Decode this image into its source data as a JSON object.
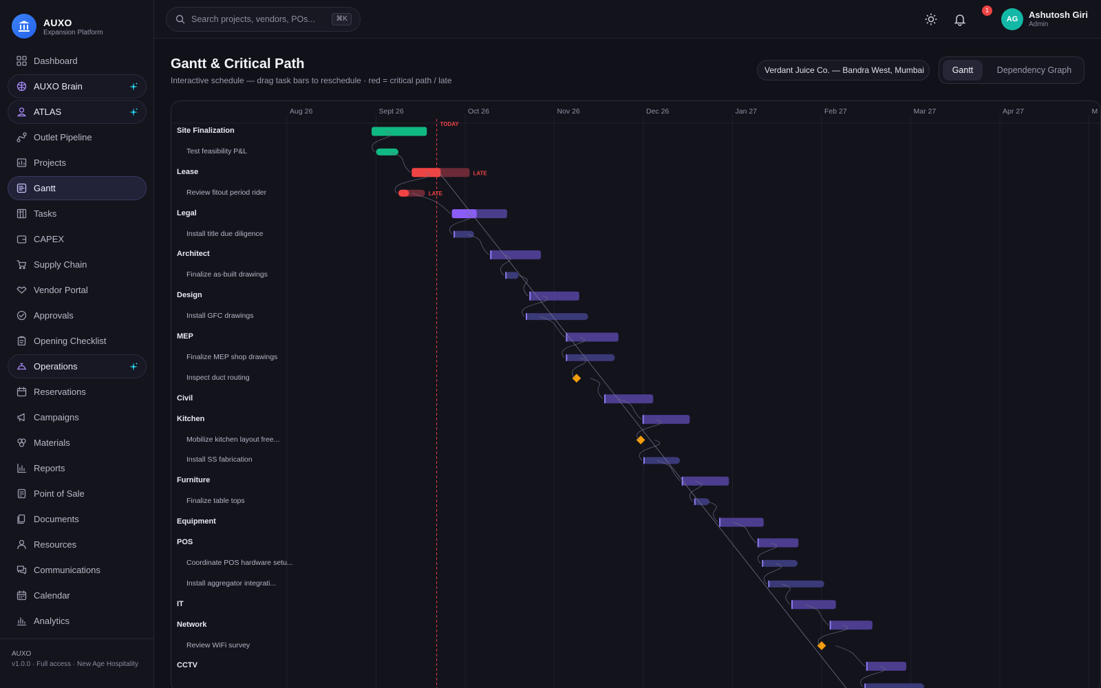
{
  "brand": {
    "name": "AUXO",
    "subtitle": "Expansion Platform"
  },
  "nav": [
    {
      "id": "dashboard",
      "label": "Dashboard",
      "icon": "grid-icon"
    },
    {
      "id": "auxo-brain",
      "label": "AUXO Brain",
      "icon": "brain-icon",
      "style": "boxed",
      "spark": true
    },
    {
      "id": "atlas",
      "label": "ATLAS",
      "icon": "user-circle-icon",
      "style": "boxed",
      "spark": true
    },
    {
      "id": "outlet-pipeline",
      "label": "Outlet Pipeline",
      "icon": "pipeline-icon"
    },
    {
      "id": "projects",
      "label": "Projects",
      "icon": "folder-icon"
    },
    {
      "id": "gantt",
      "label": "Gantt",
      "icon": "gantt-icon",
      "style": "active"
    },
    {
      "id": "tasks",
      "label": "Tasks",
      "icon": "board-icon"
    },
    {
      "id": "capex",
      "label": "CAPEX",
      "icon": "wallet-icon"
    },
    {
      "id": "supply-chain",
      "label": "Supply Chain",
      "icon": "cart-icon"
    },
    {
      "id": "vendor-portal",
      "label": "Vendor Portal",
      "icon": "handshake-icon"
    },
    {
      "id": "approvals",
      "label": "Approvals",
      "icon": "check-circle-icon"
    },
    {
      "id": "opening-checklist",
      "label": "Opening Checklist",
      "icon": "clipboard-icon"
    },
    {
      "id": "operations",
      "label": "Operations",
      "icon": "bell-service-icon",
      "style": "boxed",
      "spark": true
    },
    {
      "id": "reservations",
      "label": "Reservations",
      "icon": "calendar-icon"
    },
    {
      "id": "campaigns",
      "label": "Campaigns",
      "icon": "megaphone-icon"
    },
    {
      "id": "materials",
      "label": "Materials",
      "icon": "cubes-icon"
    },
    {
      "id": "reports",
      "label": "Reports",
      "icon": "bar-chart-icon"
    },
    {
      "id": "point-of-sale",
      "label": "Point of Sale",
      "icon": "terminal-icon"
    },
    {
      "id": "documents",
      "label": "Documents",
      "icon": "files-icon"
    },
    {
      "id": "resources",
      "label": "Resources",
      "icon": "person-icon"
    },
    {
      "id": "communications",
      "label": "Communications",
      "icon": "chat-icon"
    },
    {
      "id": "calendar",
      "label": "Calendar",
      "icon": "calendar-grid-icon"
    },
    {
      "id": "analytics",
      "label": "Analytics",
      "icon": "analytics-icon"
    }
  ],
  "footer": {
    "name": "AUXO",
    "line": "v1.0.0 · Full access · New Age Hospitality"
  },
  "topbar": {
    "search_placeholder": "Search projects, vendors, POs...",
    "shortcut": "⌘K",
    "notifications": "1",
    "user": {
      "initials": "AG",
      "name": "Ashutosh Giri",
      "role": "Admin"
    }
  },
  "page": {
    "title": "Gantt & Critical Path",
    "subtitle": "Interactive schedule — drag task bars to reschedule · red = critical path / late",
    "project": "Verdant Juice Co. — Bandra West, Mumbai",
    "view_tabs": [
      "Gantt",
      "Dependency Graph"
    ],
    "active_view": "Gantt"
  },
  "colors": {
    "done": "#10b981",
    "critical": "#ef4444",
    "active": "#8b5cf6",
    "planned": "#4c3d8f",
    "task": "#3b3a78",
    "milestone": "#f59e0b",
    "today_line": "#ef4444"
  },
  "gantt": {
    "months": [
      "Aug 26",
      "Sept 26",
      "Oct 26",
      "Nov 26",
      "Dec 26",
      "Jan 27",
      "Feb 27",
      "Mar 27",
      "Apr 27",
      "M"
    ],
    "today_label": "TODAY",
    "late_label": "LATE",
    "rows": [
      {
        "type": "group",
        "label": "Site Finalization",
        "bar": {
          "start": 0.95,
          "end": 1.57,
          "status": "done"
        }
      },
      {
        "type": "task",
        "label": "Test feasibility P&L",
        "bar": {
          "start": 1.0,
          "end": 1.25,
          "status": "done"
        }
      },
      {
        "type": "group",
        "label": "Lease",
        "bar": {
          "start": 1.4,
          "end": 2.05,
          "status": "late",
          "progress": 0.5
        }
      },
      {
        "type": "task",
        "label": "Review fitout period rider",
        "bar": {
          "start": 1.25,
          "end": 1.55,
          "status": "late",
          "progress": 0.4
        }
      },
      {
        "type": "group",
        "label": "Legal",
        "bar": {
          "start": 1.85,
          "end": 2.47,
          "status": "active",
          "progress": 0.45
        }
      },
      {
        "type": "task",
        "label": "Install title due diligence",
        "bar": {
          "start": 1.87,
          "end": 2.1,
          "status": "task"
        }
      },
      {
        "type": "group",
        "label": "Architect",
        "bar": {
          "start": 2.28,
          "end": 2.85,
          "status": "planned"
        }
      },
      {
        "type": "task",
        "label": "Finalize as-built drawings",
        "bar": {
          "start": 2.45,
          "end": 2.6,
          "status": "task"
        }
      },
      {
        "type": "group",
        "label": "Design",
        "bar": {
          "start": 2.72,
          "end": 3.28,
          "status": "planned"
        }
      },
      {
        "type": "task",
        "label": "Install GFC drawings",
        "bar": {
          "start": 2.68,
          "end": 3.38,
          "status": "task"
        }
      },
      {
        "type": "group",
        "label": "MEP",
        "bar": {
          "start": 3.13,
          "end": 3.72,
          "status": "planned"
        }
      },
      {
        "type": "task",
        "label": "Finalize MEP shop drawings",
        "bar": {
          "start": 3.13,
          "end": 3.68,
          "status": "task"
        }
      },
      {
        "type": "task",
        "label": "Inspect duct routing",
        "milestone": 3.25
      },
      {
        "type": "group",
        "label": "Civil",
        "bar": {
          "start": 3.56,
          "end": 4.11,
          "status": "planned"
        }
      },
      {
        "type": "group",
        "label": "Kitchen",
        "bar": {
          "start": 3.99,
          "end": 4.52,
          "status": "planned"
        }
      },
      {
        "type": "task",
        "label": "Mobilize kitchen layout free...",
        "milestone": 3.97
      },
      {
        "type": "task",
        "label": "Install SS fabrication",
        "bar": {
          "start": 4.0,
          "end": 4.41,
          "status": "task"
        }
      },
      {
        "type": "group",
        "label": "Furniture",
        "bar": {
          "start": 4.43,
          "end": 4.96,
          "status": "planned"
        }
      },
      {
        "type": "task",
        "label": "Finalize table tops",
        "bar": {
          "start": 4.57,
          "end": 4.74,
          "status": "task"
        }
      },
      {
        "type": "group",
        "label": "Equipment",
        "bar": {
          "start": 4.85,
          "end": 5.35,
          "status": "planned"
        }
      },
      {
        "type": "group",
        "label": "POS",
        "bar": {
          "start": 5.28,
          "end": 5.74,
          "status": "planned"
        }
      },
      {
        "type": "task",
        "label": "Coordinate POS hardware setu...",
        "bar": {
          "start": 5.33,
          "end": 5.73,
          "status": "task"
        }
      },
      {
        "type": "task",
        "label": "Install aggregator integrati...",
        "bar": {
          "start": 5.4,
          "end": 6.03,
          "status": "task"
        }
      },
      {
        "type": "group",
        "label": "IT",
        "bar": {
          "start": 5.66,
          "end": 6.16,
          "status": "planned"
        }
      },
      {
        "type": "group",
        "label": "Network",
        "bar": {
          "start": 6.09,
          "end": 6.57,
          "status": "planned"
        }
      },
      {
        "type": "task",
        "label": "Review WiFi survey",
        "milestone": 6.0
      },
      {
        "type": "group",
        "label": "CCTV",
        "bar": {
          "start": 6.5,
          "end": 6.95,
          "status": "planned"
        }
      },
      {
        "type": "task",
        "label": "",
        "bar": {
          "start": 6.48,
          "end": 7.15,
          "status": "task"
        }
      }
    ],
    "today_month": 1.68
  }
}
